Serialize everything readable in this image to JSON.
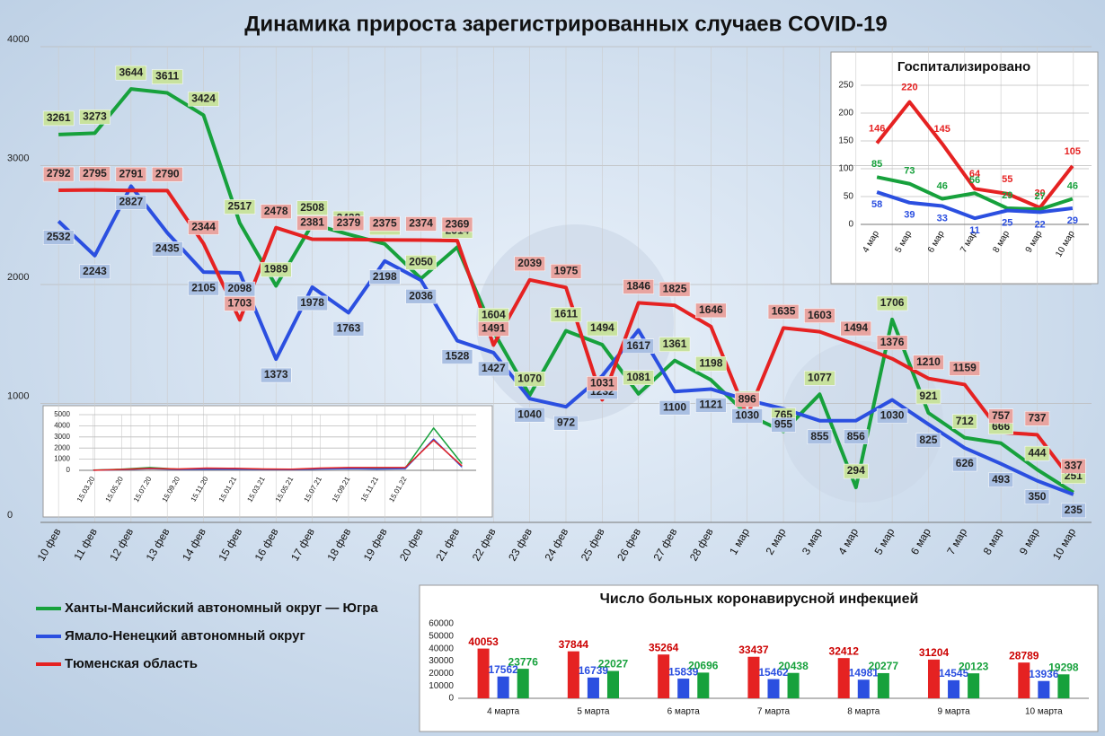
{
  "chart_data": [
    {
      "type": "line",
      "title": "Динамика прироста зарегистрированных случаев COVID-19",
      "categories": [
        "10 фев",
        "11 фев",
        "12 фев",
        "13 фев",
        "14 фев",
        "15 фев",
        "16 фев",
        "17 фев",
        "18 фев",
        "19 фев",
        "20 фев",
        "21 фев",
        "22 фев",
        "23 фев",
        "24 фев",
        "25 фев",
        "26 фев",
        "27 фев",
        "28 фев",
        "1 мар",
        "2 мар",
        "3 мар",
        "4 мар",
        "5 мар",
        "6 мар",
        "7 мар",
        "8 мар",
        "9 мар",
        "10 мар"
      ],
      "ylim": [
        0,
        4000
      ],
      "yticks": [
        0,
        1000,
        2000,
        3000,
        4000
      ],
      "grid": true,
      "series": [
        {
          "name": "Ханты-Мансийский автономный округ — Югра",
          "color": "#17a13c",
          "values": [
            3261,
            3273,
            3644,
            3611,
            3424,
            2517,
            1989,
            2508,
            2422,
            2341,
            2050,
            2314,
            1604,
            1070,
            1611,
            1494,
            1081,
            1361,
            1198,
            906,
            765,
            1077,
            294,
            1706,
            921,
            712,
            666,
            444,
            251
          ]
        },
        {
          "name": "Ямало-Ненецкий автономный округ",
          "color": "#2b4fe0",
          "values": [
            2532,
            2243,
            2827,
            2435,
            2105,
            2098,
            1373,
            1978,
            1763,
            2198,
            2036,
            1528,
            1427,
            1040,
            972,
            1232,
            1617,
            1100,
            1121,
            1030,
            955,
            855,
            856,
            1030,
            825,
            626,
            493,
            350,
            235
          ]
        },
        {
          "name": "Тюменская область",
          "color": "#e52222",
          "values": [
            2792,
            2795,
            2791,
            2790,
            2344,
            1703,
            2478,
            2381,
            2379,
            2375,
            2374,
            2369,
            1491,
            2039,
            1975,
            1031,
            1846,
            1825,
            1646,
            896,
            1635,
            1603,
            1494,
            1376,
            1210,
            1159,
            757,
            737,
            337
          ]
        }
      ]
    },
    {
      "type": "line",
      "categories": [
        "15.03.20",
        "15.05.20",
        "15.07.20",
        "15.09.20",
        "15.11.20",
        "15.01.21",
        "15.03.21",
        "15.05.21",
        "15.07.21",
        "15.09.21",
        "15.11.21",
        "15.01.22",
        null,
        null
      ],
      "ylim": [
        0,
        5000
      ],
      "yticks": [
        0,
        1000,
        2000,
        3000,
        4000,
        5000
      ],
      "grid": true,
      "series": [
        {
          "color": "#17a13c",
          "values": [
            20,
            100,
            250,
            100,
            150,
            150,
            100,
            80,
            150,
            200,
            180,
            200,
            3800,
            600
          ]
        },
        {
          "color": "#2b4fe0",
          "values": [
            10,
            60,
            150,
            80,
            100,
            100,
            80,
            60,
            120,
            150,
            120,
            150,
            2800,
            300
          ]
        },
        {
          "color": "#e52222",
          "values": [
            15,
            80,
            180,
            120,
            200,
            180,
            120,
            100,
            200,
            250,
            250,
            250,
            2700,
            400
          ]
        }
      ]
    },
    {
      "type": "line",
      "title": "Госпитализировано",
      "categories": [
        "4 мар",
        "5 мар",
        "6 мар",
        "7 мар",
        "8 мар",
        "9 мар",
        "10 мар"
      ],
      "ylim": [
        0,
        250
      ],
      "yticks": [
        0,
        50,
        100,
        150,
        200,
        250
      ],
      "grid": true,
      "series": [
        {
          "color": "#e52222",
          "values": [
            146,
            220,
            145,
            64,
            55,
            30,
            105
          ]
        },
        {
          "color": "#17a13c",
          "values": [
            85,
            73,
            46,
            56,
            29,
            27,
            46
          ]
        },
        {
          "color": "#2b4fe0",
          "values": [
            58,
            39,
            33,
            11,
            25,
            22,
            29
          ]
        }
      ]
    },
    {
      "type": "bar",
      "title": "Число больных коронавирусной инфекцией",
      "categories": [
        "4 марта",
        "5 марта",
        "6 марта",
        "7 марта",
        "8 марта",
        "9 марта",
        "10 марта"
      ],
      "ylim": [
        0,
        60000
      ],
      "yticks": [
        0,
        10000,
        20000,
        30000,
        40000,
        50000,
        60000
      ],
      "grid": false,
      "series": [
        {
          "color": "#e52222",
          "values": [
            40053,
            37844,
            35264,
            33437,
            32412,
            31204,
            28789
          ]
        },
        {
          "color": "#2b4fe0",
          "values": [
            17562,
            16739,
            15839,
            15462,
            14981,
            14545,
            13936
          ]
        },
        {
          "color": "#17a13c",
          "values": [
            23776,
            22027,
            20696,
            20438,
            20277,
            20123,
            19298
          ]
        }
      ]
    }
  ]
}
